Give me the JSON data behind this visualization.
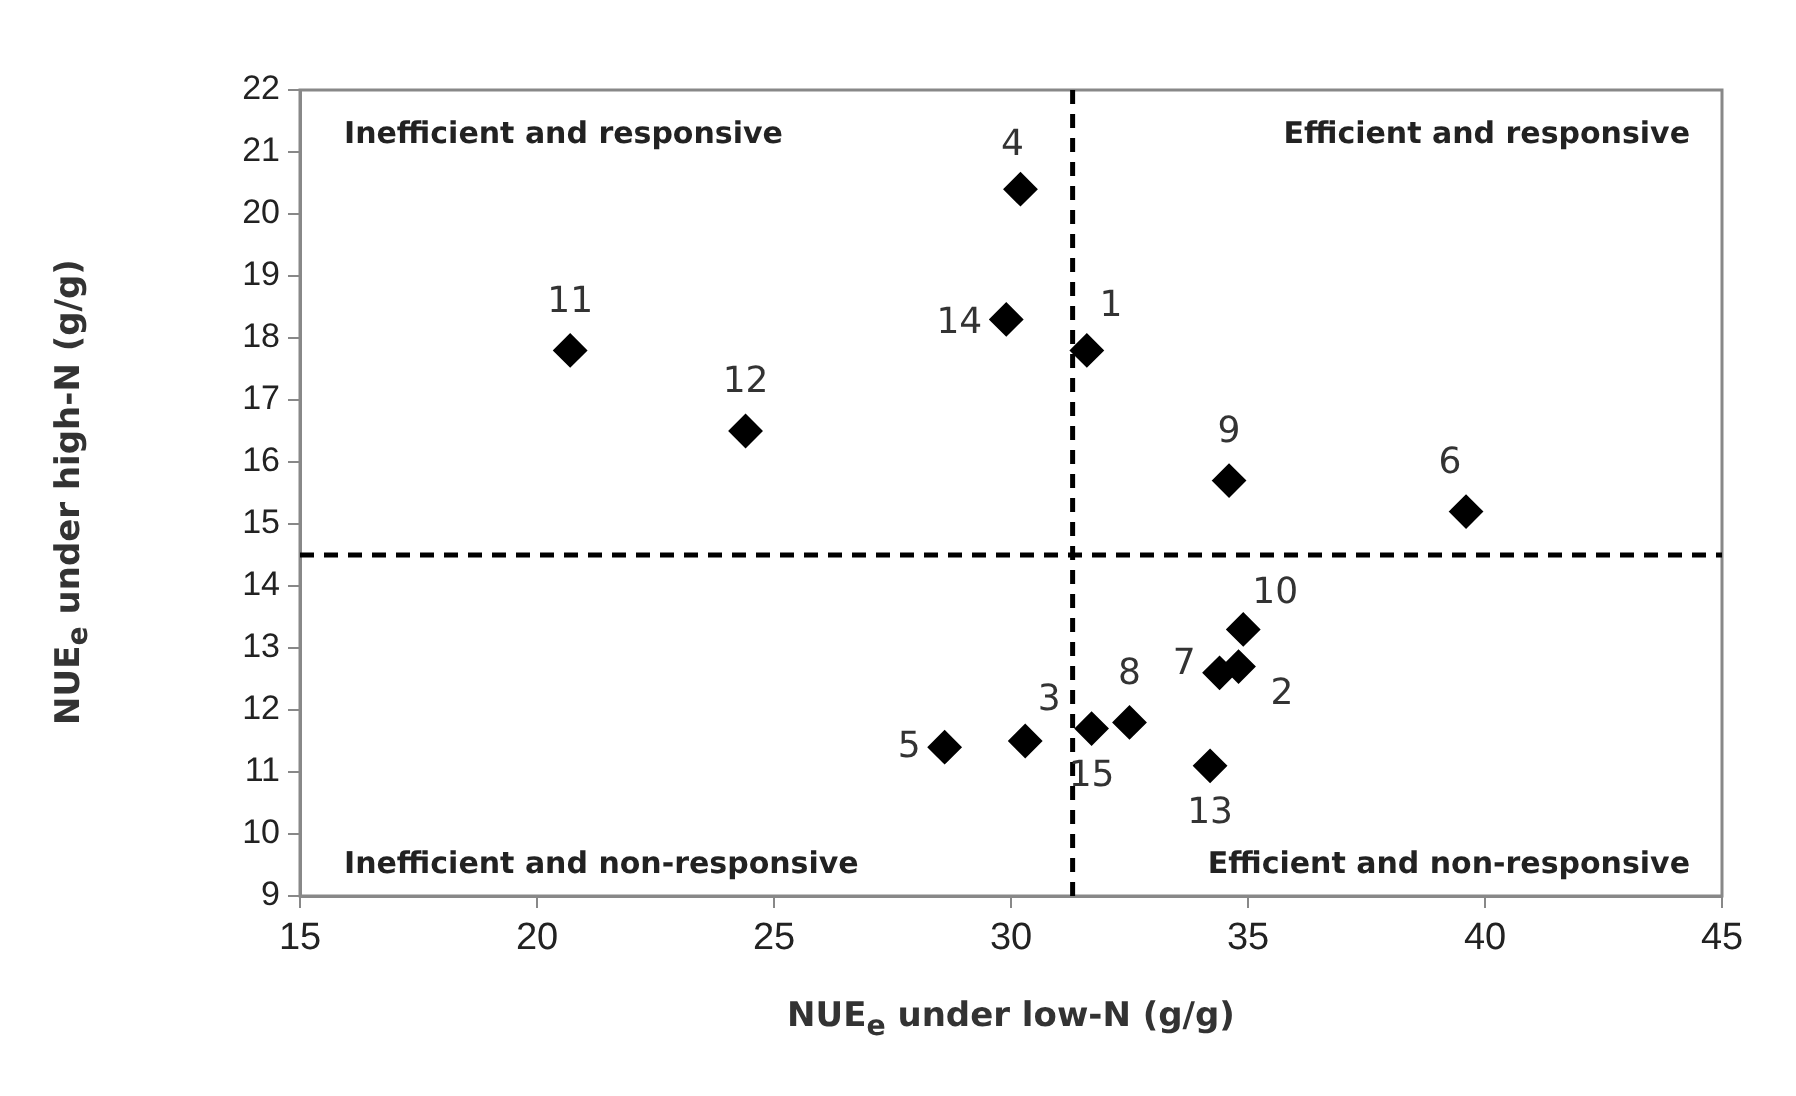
{
  "chart_data": {
    "type": "scatter",
    "xlabel": "NUE$_{e}$ under low-N (g/g)",
    "ylabel": "NUE$_{e}$ under high-N (g/g)",
    "xlim": [
      15,
      45
    ],
    "xticks": [
      15,
      20,
      25,
      30,
      35,
      40,
      45
    ],
    "ylim": [
      9,
      22
    ],
    "yticks": [
      9,
      10,
      11,
      12,
      13,
      14,
      15,
      16,
      17,
      18,
      19,
      20,
      21,
      22
    ],
    "grid": false,
    "legend": false,
    "marker": "diamond",
    "series": [
      {
        "color": "#000000",
        "x": [
          31.6,
          34.8,
          30.3,
          30.2,
          28.6,
          39.6,
          34.4,
          32.5,
          34.6,
          34.9,
          20.7,
          24.4,
          34.2,
          29.9,
          31.7
        ],
        "values": [
          17.8,
          12.7,
          11.5,
          20.4,
          11.4,
          15.2,
          12.6,
          11.8,
          15.7,
          13.3,
          17.8,
          16.5,
          11.1,
          18.3,
          11.7
        ]
      }
    ],
    "ref_lines": [
      {
        "axis": "x",
        "value": 31.3,
        "color": "#000000",
        "line_style": "dashed"
      },
      {
        "axis": "y",
        "value": 14.5,
        "color": "#000000",
        "line_style": "dashed"
      }
    ],
    "annotations": [
      {
        "text": "1",
        "x": 31.6,
        "y": 17.8
      },
      {
        "text": "2",
        "x": 34.8,
        "y": 12.7
      },
      {
        "text": "3",
        "x": 30.3,
        "y": 11.5
      },
      {
        "text": "4",
        "x": 30.2,
        "y": 20.4
      },
      {
        "text": "5",
        "x": 28.6,
        "y": 11.4
      },
      {
        "text": "6",
        "x": 39.6,
        "y": 15.2
      },
      {
        "text": "7",
        "x": 34.4,
        "y": 12.6
      },
      {
        "text": "8",
        "x": 32.5,
        "y": 11.8
      },
      {
        "text": "9",
        "x": 34.6,
        "y": 15.7
      },
      {
        "text": "10",
        "x": 34.9,
        "y": 13.3
      },
      {
        "text": "11",
        "x": 20.7,
        "y": 17.8
      },
      {
        "text": "12",
        "x": 24.4,
        "y": 16.5
      },
      {
        "text": "13",
        "x": 34.2,
        "y": 11.1
      },
      {
        "text": "14",
        "x": 29.9,
        "y": 18.3
      },
      {
        "text": "15",
        "x": 31.7,
        "y": 11.7
      },
      "Inefficient and responsive",
      "Efficient and responsive",
      "Inefficient and non-responsive",
      "Efficient and non-responsive"
    ]
  }
}
